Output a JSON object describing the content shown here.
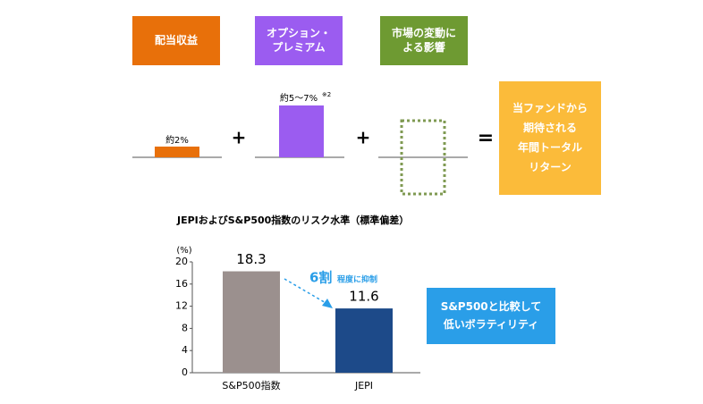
{
  "diagram": {
    "boxes": [
      {
        "lines": [
          "配当収益"
        ],
        "color": "#e8700a"
      },
      {
        "lines": [
          "オプション・",
          "プレミアム"
        ],
        "color": "#9b5cf0"
      },
      {
        "lines": [
          "市場の変動に",
          "よる影響"
        ],
        "color": "#6e9a32"
      }
    ],
    "bar_labels": [
      "約2%",
      "約5～7%",
      "※2"
    ],
    "plus": "+",
    "equals": "=",
    "result": {
      "lines": [
        "当ファンドから",
        "期待される",
        "年間トータル",
        "リターン"
      ],
      "color": "#fbbb3a"
    }
  },
  "chart_data": {
    "type": "bar",
    "title": "JEPIおよびS&P500指数のリスク水準（標準偏差）",
    "unit": "(%)",
    "categories": [
      "S&P500指数",
      "JEPI"
    ],
    "values": [
      18.3,
      11.6
    ],
    "colors": [
      "#9b908e",
      "#1d4a89"
    ],
    "ylim": [
      0,
      20
    ],
    "yticks": [
      0,
      4,
      8,
      12,
      16,
      20
    ],
    "grid": false,
    "annotation": [
      "6割",
      "程度に抑制"
    ],
    "note": {
      "lines": [
        "S&P500と比較して",
        "低いボラティリティ"
      ],
      "color": "#2a9ee8"
    }
  }
}
